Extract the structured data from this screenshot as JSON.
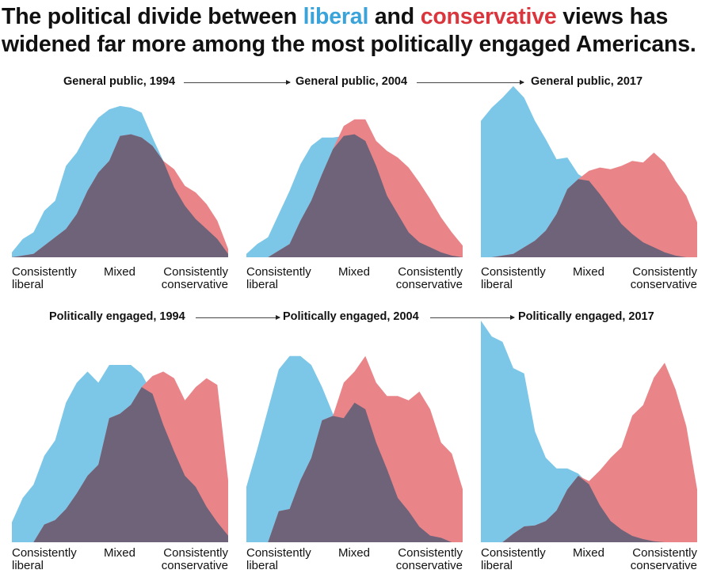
{
  "title": {
    "part1": "The political divide between ",
    "liberal": "liberal",
    "part2": " and ",
    "conservative": "conservative",
    "part3": " views has widened far more among the most politically engaged Americans."
  },
  "colors": {
    "liberal": "#7cc7e8",
    "conservative": "#e98589",
    "overlap": "#6f6379",
    "title_liberal": "#3aa3d9",
    "title_conservative": "#d9363e"
  },
  "axis_labels": {
    "left_line1": "Consistently",
    "left_line2": "liberal",
    "center": "Mixed",
    "right_line1": "Consistently",
    "right_line2": "conservative"
  },
  "chart_data": [
    {
      "type": "area",
      "title": "General public, 1994",
      "x": [
        0,
        1,
        2,
        3,
        4,
        5,
        6,
        7,
        8,
        9,
        10,
        11,
        12,
        13,
        14,
        15,
        16,
        17,
        18,
        19,
        20
      ],
      "series": [
        {
          "name": "Liberal",
          "values": [
            3,
            11,
            15,
            28,
            34,
            55,
            63,
            75,
            84,
            89,
            91,
            90,
            87,
            72,
            58,
            42,
            31,
            23,
            17,
            11,
            2
          ]
        },
        {
          "name": "Conservative",
          "values": [
            0,
            1,
            2,
            7,
            12,
            17,
            26,
            40,
            51,
            58,
            73,
            74,
            72,
            67,
            58,
            53,
            43,
            39,
            32,
            22,
            5
          ]
        }
      ],
      "xlabel": "",
      "ylabel": "",
      "ylim": [
        0,
        100
      ]
    },
    {
      "type": "area",
      "title": "General public, 2004",
      "x": [
        0,
        1,
        2,
        3,
        4,
        5,
        6,
        7,
        8,
        9,
        10,
        11,
        12,
        13,
        14,
        15,
        16,
        17,
        18,
        19,
        20
      ],
      "series": [
        {
          "name": "Liberal",
          "values": [
            2,
            8,
            12,
            26,
            40,
            56,
            67,
            72,
            72,
            73,
            74,
            70,
            55,
            37,
            26,
            15,
            9,
            6,
            3,
            1,
            0
          ]
        },
        {
          "name": "Conservative",
          "values": [
            0,
            0,
            0,
            4,
            8,
            22,
            34,
            50,
            65,
            79,
            83,
            83,
            70,
            64,
            60,
            54,
            45,
            35,
            24,
            15,
            7
          ]
        }
      ],
      "xlabel": "",
      "ylabel": "",
      "ylim": [
        0,
        100
      ]
    },
    {
      "type": "area",
      "title": "General public, 2017",
      "x": [
        0,
        1,
        2,
        3,
        4,
        5,
        6,
        7,
        8,
        9,
        10,
        11,
        12,
        13,
        14,
        15,
        16,
        17,
        18,
        19,
        20
      ],
      "series": [
        {
          "name": "Liberal",
          "values": [
            82,
            90,
            96,
            103,
            96,
            82,
            71,
            59,
            60,
            50,
            46,
            38,
            29,
            20,
            14,
            9,
            6,
            3,
            1,
            0,
            0
          ]
        },
        {
          "name": "Conservative",
          "values": [
            0,
            0,
            1,
            2,
            6,
            10,
            16,
            26,
            41,
            47,
            52,
            54,
            53,
            55,
            58,
            57,
            63,
            57,
            46,
            37,
            21
          ]
        }
      ],
      "xlabel": "",
      "ylabel": "",
      "ylim": [
        0,
        100
      ]
    },
    {
      "type": "area",
      "title": "Politically engaged, 1994",
      "x": [
        0,
        1,
        2,
        3,
        4,
        5,
        6,
        7,
        8,
        9,
        10,
        11,
        12,
        13,
        14,
        15,
        16,
        17,
        18,
        19,
        20
      ],
      "series": [
        {
          "name": "Liberal",
          "values": [
            9,
            20,
            26,
            39,
            46,
            63,
            72,
            77,
            72,
            80,
            80,
            80,
            76,
            67,
            53,
            41,
            30,
            25,
            16,
            9,
            3
          ]
        },
        {
          "name": "Conservative",
          "values": [
            0,
            0,
            0,
            8,
            10,
            15,
            22,
            30,
            35,
            56,
            58,
            62,
            70,
            75,
            77,
            74,
            64,
            70,
            74,
            71,
            28
          ]
        }
      ],
      "xlabel": "",
      "ylabel": "",
      "ylim": [
        0,
        100
      ]
    },
    {
      "type": "area",
      "title": "Politically engaged, 2004",
      "x": [
        0,
        1,
        2,
        3,
        4,
        5,
        6,
        7,
        8,
        9,
        10,
        11,
        12,
        13,
        14,
        15,
        16,
        17,
        18,
        19,
        20
      ],
      "series": [
        {
          "name": "Liberal",
          "values": [
            25,
            42,
            60,
            78,
            84,
            84,
            80,
            70,
            58,
            56,
            63,
            60,
            45,
            33,
            20,
            14,
            7,
            3,
            2,
            0,
            0
          ]
        },
        {
          "name": "Conservative",
          "values": [
            0,
            0,
            0,
            14,
            15,
            28,
            38,
            55,
            57,
            72,
            77,
            84,
            72,
            66,
            66,
            64,
            68,
            60,
            45,
            40,
            24
          ]
        }
      ],
      "xlabel": "",
      "ylabel": "",
      "ylim": [
        0,
        100
      ]
    },
    {
      "type": "area",
      "title": "Politically engaged, 2017",
      "x": [
        0,
        1,
        2,
        3,
        4,
        5,
        6,
        7,
        8,
        9,
        10,
        11,
        12,
        13,
        14,
        15,
        16,
        17,
        18,
        19,
        20
      ],
      "series": [
        {
          "name": "Liberal",
          "values": [
            210,
            195,
            190,
            165,
            160,
            105,
            80,
            70,
            70,
            65,
            55,
            35,
            20,
            12,
            6,
            3,
            1,
            0,
            0,
            0,
            0
          ]
        },
        {
          "name": "Conservative",
          "values": [
            0,
            0,
            0,
            8,
            15,
            16,
            20,
            30,
            50,
            63,
            58,
            68,
            80,
            90,
            120,
            130,
            156,
            170,
            145,
            110,
            50
          ]
        }
      ],
      "xlabel": "",
      "ylabel": "",
      "ylim": [
        0,
        210
      ]
    }
  ]
}
